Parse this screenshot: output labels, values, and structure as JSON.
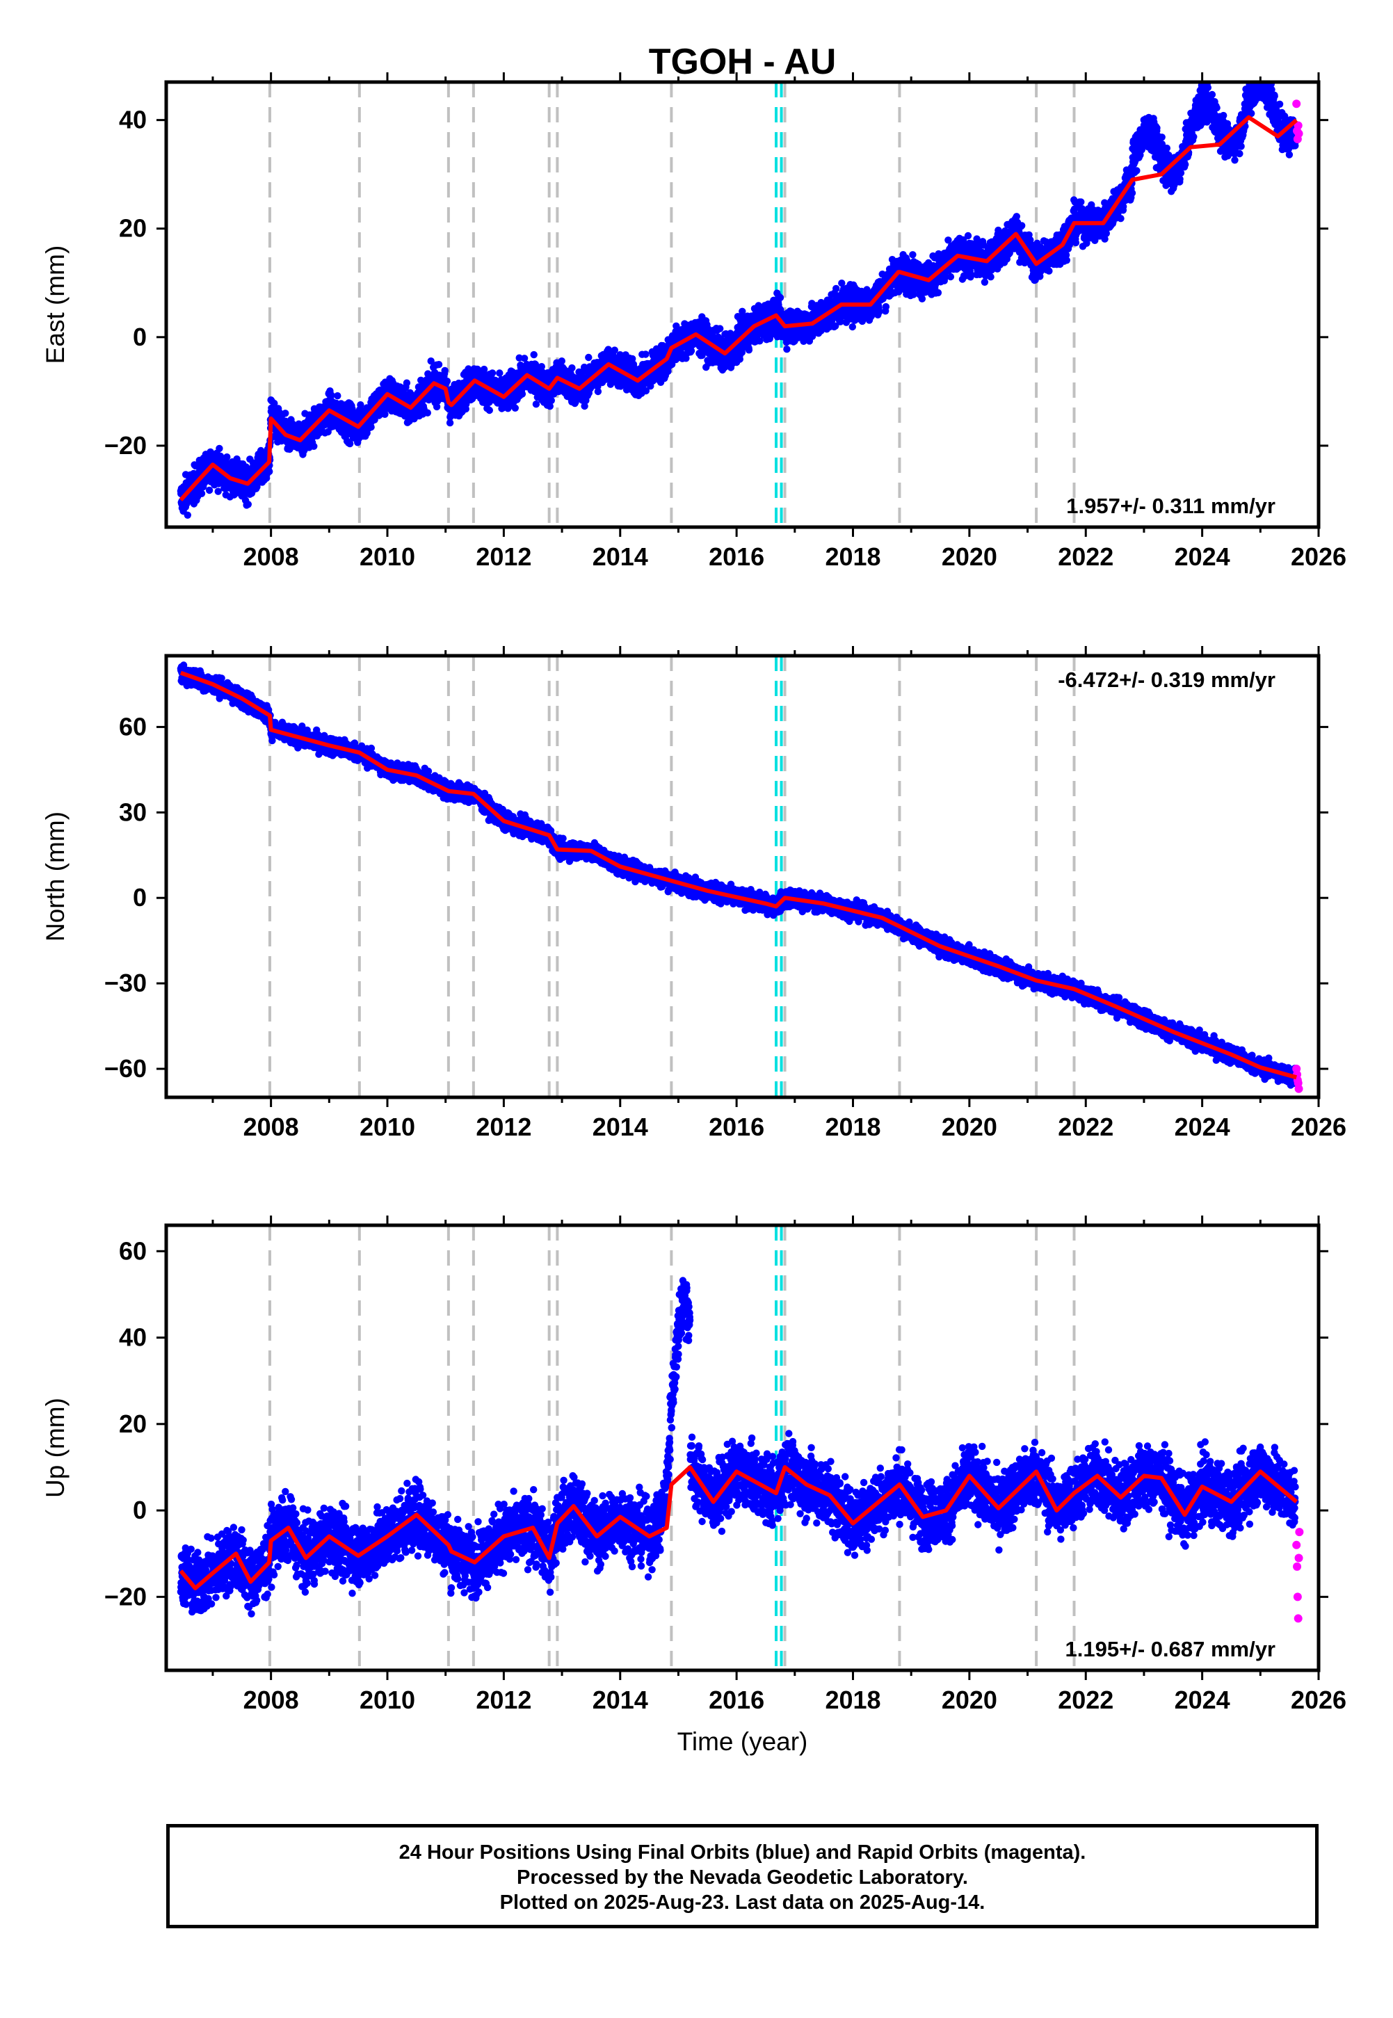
{
  "colors": {
    "final_points": "#0000ff",
    "rapid_points": "#ff00ff",
    "model": "#ff0000",
    "equipment_change_lines": "#c0c0c0",
    "other_change_lines": "#00e0e0"
  },
  "chart_data": [
    {
      "type": "scatter",
      "title": "TGOH - AU",
      "ylabel": "East (mm)",
      "xlabel": "",
      "xlim": [
        2006.2,
        2026.0
      ],
      "ylim": [
        -35,
        47
      ],
      "xticks": [
        2008,
        2010,
        2012,
        2014,
        2016,
        2018,
        2020,
        2022,
        2024,
        2026
      ],
      "yticks": [
        -20,
        0,
        20,
        40
      ],
      "grid": false,
      "annotation": "1.957+/- 0.311 mm/yr",
      "annotation_position": "bottom-right",
      "vertical_lines_gray": [
        2007.98,
        2009.52,
        2011.05,
        2011.48,
        2012.78,
        2012.92,
        2014.88,
        2016.83,
        2018.8,
        2021.15,
        2021.8
      ],
      "vertical_lines_cyan": [
        2016.68,
        2016.77
      ],
      "model_series": {
        "name": "",
        "x": [
          2006.45,
          2006.7,
          2007.0,
          2007.3,
          2007.6,
          2007.97,
          2008.0,
          2008.25,
          2008.5,
          2009.0,
          2009.5,
          2010.0,
          2010.4,
          2010.8,
          2011.0,
          2011.05,
          2011.1,
          2011.5,
          2012.0,
          2012.4,
          2012.78,
          2012.92,
          2013.3,
          2013.8,
          2014.3,
          2014.8,
          2014.88,
          2015.3,
          2015.8,
          2016.3,
          2016.68,
          2016.83,
          2017.3,
          2017.8,
          2018.3,
          2018.78,
          2018.8,
          2019.3,
          2019.8,
          2020.3,
          2020.8,
          2021.15,
          2021.6,
          2021.8,
          2022.3,
          2022.8,
          2023.3,
          2023.8,
          2024.3,
          2024.8,
          2025.3,
          2025.62
        ],
        "y": [
          -30.0,
          -27.0,
          -23.5,
          -26.0,
          -27.0,
          -23.0,
          -15.0,
          -18.0,
          -19.0,
          -13.5,
          -16.5,
          -10.5,
          -13.0,
          -8.5,
          -9.5,
          -12.0,
          -12.5,
          -8.0,
          -11.0,
          -7.0,
          -9.5,
          -7.5,
          -9.5,
          -5.0,
          -8.0,
          -4.0,
          -2.0,
          0.5,
          -3.0,
          2.0,
          4.0,
          2.0,
          2.5,
          6.0,
          6.0,
          12.0,
          12.0,
          10.5,
          15.0,
          14.0,
          19.0,
          13.5,
          17.0,
          21.0,
          21.0,
          29.0,
          30.0,
          35.0,
          35.5,
          40.5,
          37.0,
          40.0
        ]
      },
      "final_point_count": 6500,
      "rapid_points": {
        "x": [
          2025.62,
          2025.63,
          2025.64,
          2025.65,
          2025.66
        ],
        "y": [
          43.0,
          38.0,
          36.5,
          39.0,
          37.5
        ]
      }
    },
    {
      "type": "scatter",
      "title": "",
      "ylabel": "North (mm)",
      "xlabel": "",
      "xlim": [
        2006.2,
        2026.0
      ],
      "ylim": [
        -70,
        85
      ],
      "xticks": [
        2008,
        2010,
        2012,
        2014,
        2016,
        2018,
        2020,
        2022,
        2024,
        2026
      ],
      "yticks": [
        -60,
        -30,
        0,
        30,
        60
      ],
      "grid": false,
      "annotation": "-6.472+/- 0.319 mm/yr",
      "annotation_position": "top-right",
      "vertical_lines_gray": [
        2007.98,
        2009.52,
        2011.05,
        2011.48,
        2012.78,
        2012.92,
        2014.88,
        2016.83,
        2018.8,
        2021.15,
        2021.8
      ],
      "vertical_lines_cyan": [
        2016.68,
        2016.77
      ],
      "model_series": {
        "name": "",
        "x": [
          2006.45,
          2007.0,
          2007.5,
          2007.98,
          2008.0,
          2009.0,
          2009.52,
          2010.0,
          2010.5,
          2011.05,
          2011.48,
          2012.0,
          2012.78,
          2012.92,
          2013.5,
          2014.0,
          2014.88,
          2015.5,
          2016.5,
          2016.68,
          2016.83,
          2017.5,
          2018.5,
          2018.8,
          2019.5,
          2020.5,
          2021.15,
          2021.8,
          2022.5,
          2023.5,
          2024.5,
          2025.0,
          2025.62
        ],
        "y": [
          79.0,
          75.0,
          70.0,
          64.0,
          59.0,
          53.5,
          51.0,
          45.0,
          43.0,
          37.5,
          36.5,
          27.0,
          22.0,
          17.0,
          16.5,
          11.0,
          6.0,
          2.5,
          -2.0,
          -3.0,
          0.0,
          -2.0,
          -7.0,
          -10.0,
          -17.0,
          -24.0,
          -29.0,
          -32.0,
          -38.0,
          -47.0,
          -55.0,
          -59.5,
          -63.0
        ]
      },
      "final_point_count": 6500,
      "rapid_points": {
        "x": [
          2025.62,
          2025.63,
          2025.64,
          2025.65,
          2025.66
        ],
        "y": [
          -60.0,
          -62.0,
          -64.0,
          -65.0,
          -67.0
        ]
      }
    },
    {
      "type": "scatter",
      "title": "",
      "ylabel": "Up (mm)",
      "xlabel": "Time (year)",
      "xlim": [
        2006.2,
        2026.0
      ],
      "ylim": [
        -37,
        66
      ],
      "xticks": [
        2008,
        2010,
        2012,
        2014,
        2016,
        2018,
        2020,
        2022,
        2024,
        2026
      ],
      "yticks": [
        -20,
        0,
        20,
        40,
        60
      ],
      "grid": false,
      "annotation": "1.195+/- 0.687 mm/yr",
      "annotation_position": "bottom-right",
      "vertical_lines_gray": [
        2007.98,
        2009.52,
        2011.05,
        2011.48,
        2012.78,
        2012.92,
        2014.88,
        2016.83,
        2018.8,
        2021.15,
        2021.8
      ],
      "vertical_lines_cyan": [
        2016.68,
        2016.77
      ],
      "model_series": {
        "name": "",
        "x": [
          2006.45,
          2006.7,
          2007.0,
          2007.4,
          2007.65,
          2007.97,
          2008.0,
          2008.3,
          2008.6,
          2009.0,
          2009.5,
          2010.0,
          2010.5,
          2011.05,
          2011.1,
          2011.5,
          2012.0,
          2012.5,
          2012.78,
          2012.92,
          2013.2,
          2013.6,
          2014.0,
          2014.5,
          2014.8,
          2014.88,
          2015.2,
          2015.6,
          2016.0,
          2016.68,
          2016.83,
          2017.2,
          2017.6,
          2018.0,
          2018.8,
          2019.2,
          2019.6,
          2020.0,
          2020.5,
          2021.15,
          2021.5,
          2021.8,
          2022.2,
          2022.6,
          2023.0,
          2023.3,
          2023.7,
          2024.0,
          2024.5,
          2025.0,
          2025.62
        ],
        "y": [
          -14.0,
          -18.0,
          -14.5,
          -10.0,
          -16.5,
          -12.0,
          -7.0,
          -4.0,
          -11.0,
          -6.0,
          -10.5,
          -6.0,
          -1.0,
          -8.0,
          -9.5,
          -12.0,
          -6.0,
          -4.0,
          -11.0,
          -3.0,
          1.0,
          -6.0,
          -1.5,
          -6.0,
          -4.0,
          6.0,
          10.0,
          2.0,
          9.0,
          4.0,
          10.0,
          6.0,
          3.5,
          -3.0,
          6.0,
          -1.5,
          0.0,
          8.0,
          0.5,
          9.0,
          0.0,
          4.0,
          8.0,
          3.0,
          8.0,
          7.5,
          -1.0,
          5.5,
          2.0,
          9.0,
          2.0
        ]
      },
      "final_point_count": 6500,
      "rapid_points": {
        "x": [
          2025.62,
          2025.63,
          2025.64,
          2025.65,
          2025.66,
          2025.67
        ],
        "y": [
          -8.0,
          -13.0,
          -20.0,
          -25.0,
          -11.0,
          -5.0
        ]
      }
    }
  ],
  "footer": {
    "line1": "24 Hour Positions Using Final Orbits (blue) and Rapid Orbits (magenta).",
    "line2": "Processed by the Nevada Geodetic Laboratory.",
    "line3": "Plotted on 2025-Aug-23. Last data on 2025-Aug-14."
  }
}
